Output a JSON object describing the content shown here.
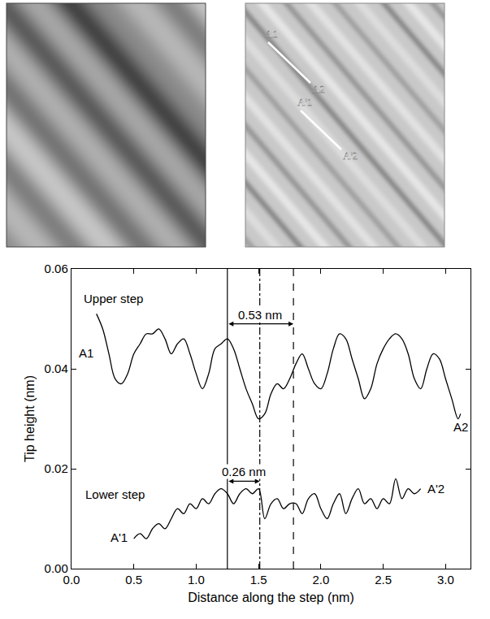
{
  "images": {
    "right_labels": [
      {
        "start": "A1",
        "end": "A2"
      },
      {
        "start": "A'1",
        "end": "A'2"
      }
    ]
  },
  "chart_data": {
    "type": "line",
    "x_label": "Distance along the step (nm)",
    "y_label": "Tip height (nm)",
    "xlim": [
      0,
      3.2
    ],
    "ylim": [
      0,
      0.06
    ],
    "xticks": [
      {
        "value": 0,
        "label": "0.0"
      },
      {
        "value": 0.5,
        "label": "0.5"
      },
      {
        "value": 1,
        "label": "1.0"
      },
      {
        "value": 1.5,
        "label": "1.5"
      },
      {
        "value": 2,
        "label": "2.0"
      },
      {
        "value": 2.5,
        "label": "2.5"
      },
      {
        "value": 3,
        "label": "3.0"
      }
    ],
    "yticks": [
      {
        "value": 0,
        "label": "0.00"
      },
      {
        "value": 0.02,
        "label": "0.02"
      },
      {
        "value": 0.04,
        "label": "0.04"
      },
      {
        "value": 0.06,
        "label": "0.06"
      }
    ],
    "grid": false,
    "series": [
      {
        "name": "Upper step",
        "start_label": "A1",
        "end_label": "A2",
        "color": "#000000",
        "x": [
          0.2,
          0.25,
          0.3,
          0.35,
          0.4,
          0.45,
          0.5,
          0.55,
          0.6,
          0.65,
          0.7,
          0.75,
          0.8,
          0.85,
          0.9,
          0.95,
          1.0,
          1.05,
          1.1,
          1.15,
          1.2,
          1.25,
          1.3,
          1.35,
          1.4,
          1.45,
          1.5,
          1.55,
          1.6,
          1.65,
          1.7,
          1.75,
          1.8,
          1.85,
          1.9,
          1.95,
          2.0,
          2.05,
          2.1,
          2.15,
          2.2,
          2.25,
          2.3,
          2.35,
          2.4,
          2.45,
          2.5,
          2.55,
          2.6,
          2.65,
          2.7,
          2.75,
          2.8,
          2.85,
          2.9,
          2.95,
          3.0,
          3.05,
          3.1,
          3.12
        ],
        "values": [
          0.051,
          0.048,
          0.043,
          0.038,
          0.037,
          0.039,
          0.043,
          0.045,
          0.047,
          0.047,
          0.048,
          0.046,
          0.043,
          0.045,
          0.046,
          0.043,
          0.039,
          0.036,
          0.039,
          0.044,
          0.045,
          0.046,
          0.044,
          0.04,
          0.036,
          0.033,
          0.03,
          0.031,
          0.035,
          0.037,
          0.036,
          0.038,
          0.041,
          0.043,
          0.04,
          0.037,
          0.036,
          0.039,
          0.044,
          0.047,
          0.046,
          0.042,
          0.038,
          0.034,
          0.036,
          0.041,
          0.044,
          0.046,
          0.047,
          0.046,
          0.043,
          0.038,
          0.036,
          0.04,
          0.043,
          0.042,
          0.038,
          0.034,
          0.03,
          0.031
        ]
      },
      {
        "name": "Lower step",
        "start_label": "A'1",
        "end_label": "A'2",
        "color": "#000000",
        "x": [
          0.5,
          0.55,
          0.6,
          0.65,
          0.7,
          0.75,
          0.8,
          0.85,
          0.9,
          0.95,
          1.0,
          1.05,
          1.1,
          1.15,
          1.2,
          1.25,
          1.3,
          1.35,
          1.4,
          1.45,
          1.5,
          1.55,
          1.6,
          1.65,
          1.7,
          1.75,
          1.8,
          1.85,
          1.9,
          1.95,
          2.0,
          2.05,
          2.1,
          2.15,
          2.2,
          2.25,
          2.3,
          2.35,
          2.4,
          2.45,
          2.5,
          2.55,
          2.6,
          2.65,
          2.7,
          2.75,
          2.8
        ],
        "values": [
          0.006,
          0.007,
          0.006,
          0.008,
          0.009,
          0.008,
          0.01,
          0.012,
          0.011,
          0.013,
          0.012,
          0.014,
          0.013,
          0.015,
          0.016,
          0.015,
          0.013,
          0.015,
          0.016,
          0.015,
          0.016,
          0.01,
          0.013,
          0.014,
          0.012,
          0.013,
          0.013,
          0.011,
          0.014,
          0.015,
          0.012,
          0.01,
          0.013,
          0.015,
          0.011,
          0.014,
          0.016,
          0.013,
          0.014,
          0.012,
          0.014,
          0.013,
          0.018,
          0.014,
          0.016,
          0.015,
          0.016
        ]
      }
    ],
    "markers": [
      {
        "x": 1.25,
        "line_style": "solid"
      },
      {
        "x": 1.51,
        "line_style": "dashdot"
      },
      {
        "x": 1.78,
        "line_style": "dashed"
      }
    ],
    "measurements": [
      {
        "label": "0.53 nm",
        "from": 1.25,
        "to": 1.78,
        "y": 0.049
      },
      {
        "label": "0.26 nm",
        "from": 1.25,
        "to": 1.51,
        "y": 0.0175
      }
    ]
  }
}
